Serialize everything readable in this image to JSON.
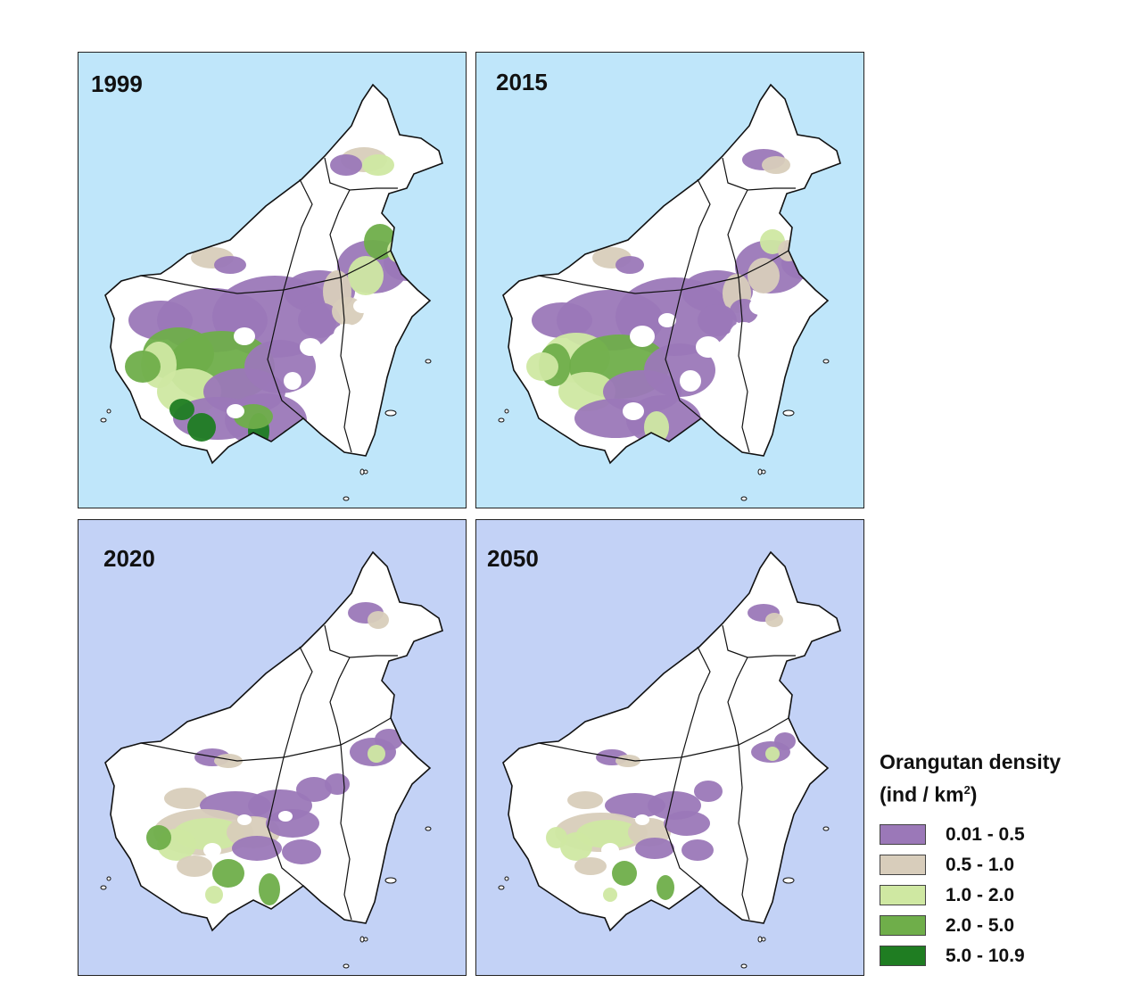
{
  "panels": [
    {
      "year": "1999",
      "sea_color": "#bfe6fa",
      "scenario": "p1999"
    },
    {
      "year": "2015",
      "sea_color": "#bfe6fa",
      "scenario": "p2015"
    },
    {
      "year": "2020",
      "sea_color": "#c3d2f6",
      "scenario": "p2020"
    },
    {
      "year": "2050",
      "sea_color": "#c3d2f6",
      "scenario": "p2050"
    }
  ],
  "legend": {
    "title": "Orangutan density",
    "units_prefix": "(ind / km",
    "units_sup": "2",
    "units_suffix": ")",
    "classes": [
      {
        "label": "0.01 - 0.5",
        "color": "#9b78b8"
      },
      {
        "label": "0.5 - 1.0",
        "color": "#d8cdbb"
      },
      {
        "label": "1.0 - 2.0",
        "color": "#cfe8a2"
      },
      {
        "label": "2.0 - 5.0",
        "color": "#6fae4a"
      },
      {
        "label": "5.0 - 10.9",
        "color": "#1f7d22"
      }
    ]
  },
  "colors": {
    "land": "#ffffff",
    "boundary": "#111111"
  }
}
